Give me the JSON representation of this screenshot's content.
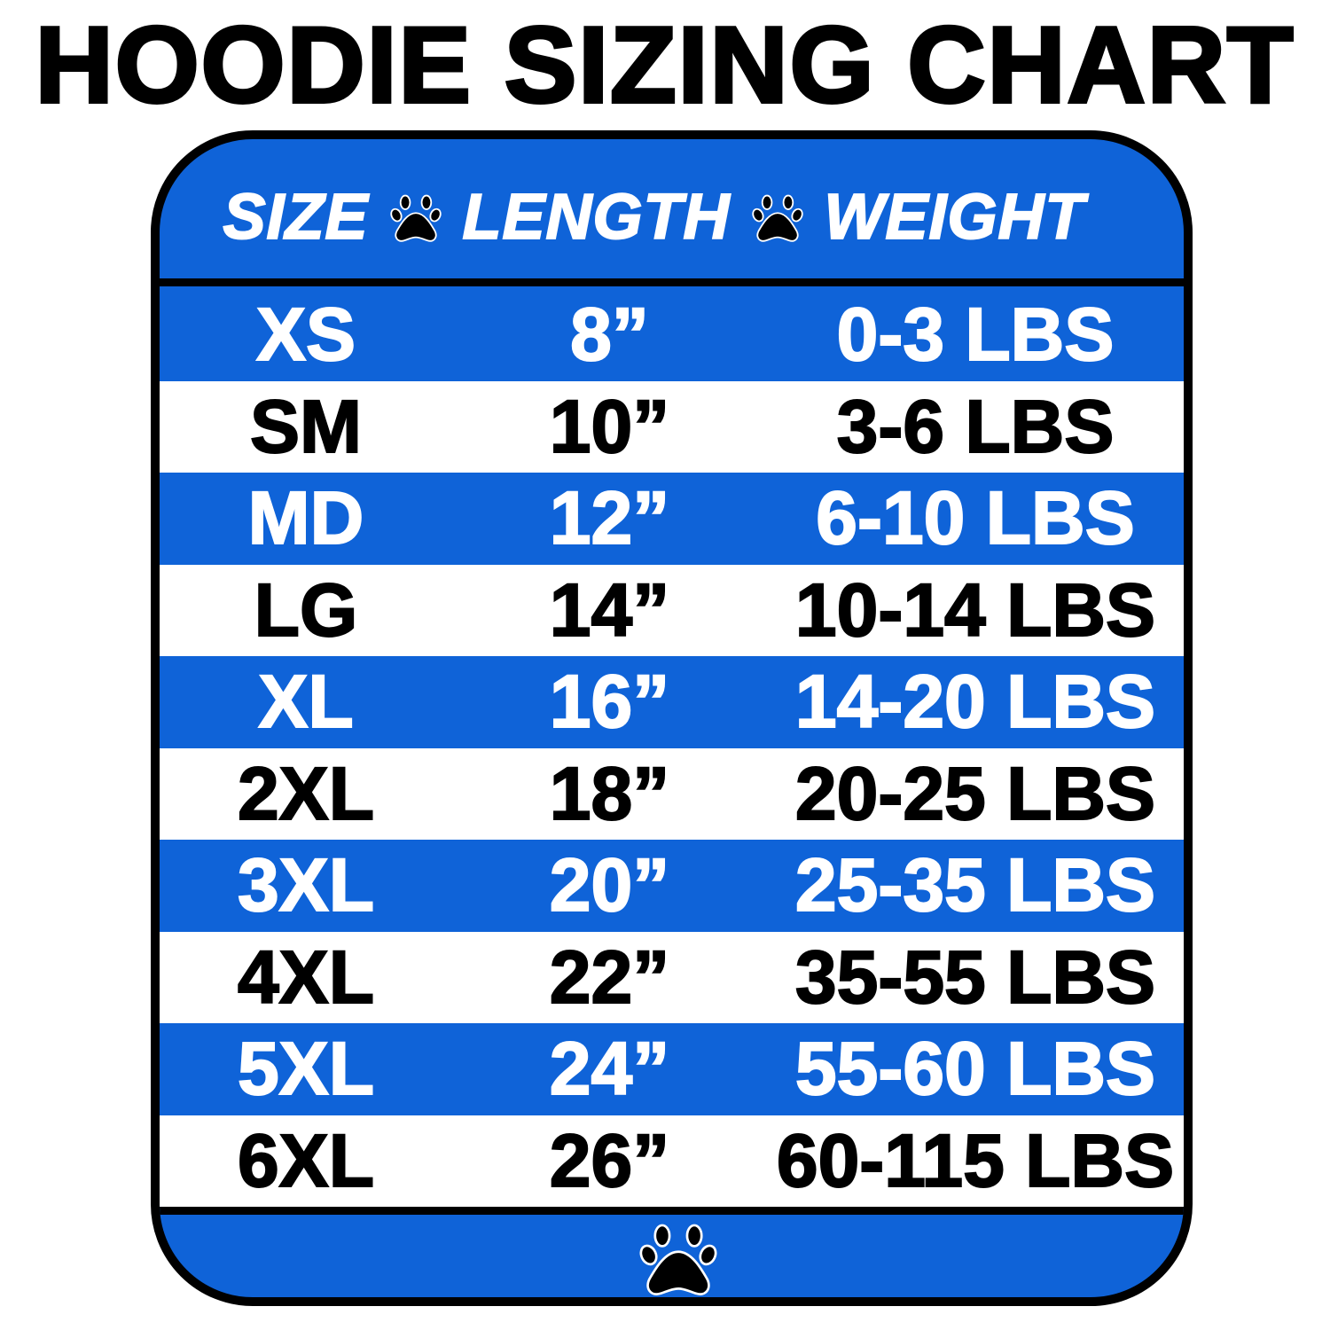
{
  "title": "HOODIE SIZING CHART",
  "colors": {
    "blue": "#0f63d8",
    "white": "#ffffff",
    "black": "#000000"
  },
  "header": {
    "size": "SIZE",
    "length": "LENGTH",
    "weight": "WEIGHT",
    "separator_icon": "paw-icon"
  },
  "rows": [
    {
      "size": "XS",
      "length": "8”",
      "weight": "0-3 LBS",
      "band": "blue"
    },
    {
      "size": "SM",
      "length": "10”",
      "weight": "3-6 LBS",
      "band": "white"
    },
    {
      "size": "MD",
      "length": "12”",
      "weight": "6-10 LBS",
      "band": "blue"
    },
    {
      "size": "LG",
      "length": "14”",
      "weight": "10-14 LBS",
      "band": "white"
    },
    {
      "size": "XL",
      "length": "16”",
      "weight": "14-20 LBS",
      "band": "blue"
    },
    {
      "size": "2XL",
      "length": "18”",
      "weight": "20-25 LBS",
      "band": "white"
    },
    {
      "size": "3XL",
      "length": "20”",
      "weight": "25-35 LBS",
      "band": "blue"
    },
    {
      "size": "4XL",
      "length": "22”",
      "weight": "35-55 LBS",
      "band": "white"
    },
    {
      "size": "5XL",
      "length": "24”",
      "weight": "55-60 LBS",
      "band": "blue"
    },
    {
      "size": "6XL",
      "length": "26”",
      "weight": "60-115 LBS",
      "band": "white"
    }
  ],
  "footer": {
    "icon": "paw-icon"
  }
}
